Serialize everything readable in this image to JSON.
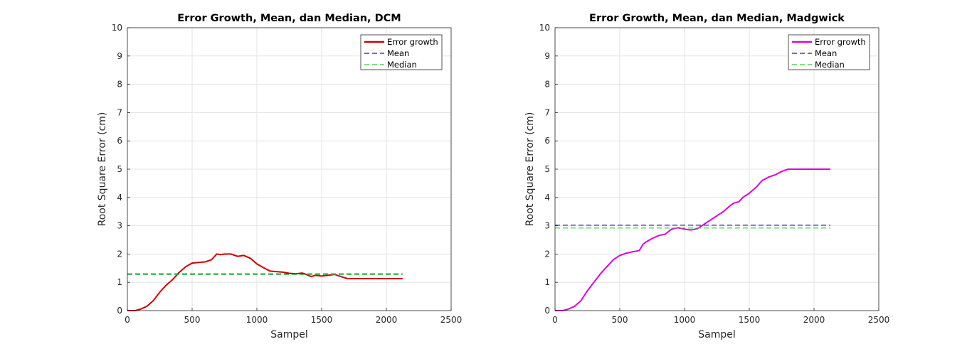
{
  "chart_data": [
    {
      "type": "line",
      "title": "Error Growth, Mean, dan Median, DCM",
      "xlabel": "Sampel",
      "ylabel": "Root Square Error (cm)",
      "xlim": [
        0,
        2500
      ],
      "ylim": [
        0,
        10
      ],
      "xticks": [
        0,
        500,
        1000,
        1500,
        2000,
        2500
      ],
      "yticks": [
        0,
        1,
        2,
        3,
        4,
        5,
        6,
        7,
        8,
        9,
        10
      ],
      "grid": true,
      "legend_position": "top-right",
      "series": [
        {
          "name": "Error growth",
          "color": "#d00000",
          "style": "solid",
          "x": [
            0,
            60,
            100,
            150,
            200,
            250,
            300,
            350,
            400,
            450,
            500,
            550,
            600,
            650,
            690,
            720,
            750,
            800,
            850,
            900,
            950,
            1000,
            1050,
            1100,
            1150,
            1200,
            1250,
            1300,
            1350,
            1380,
            1420,
            1450,
            1500,
            1550,
            1600,
            1650,
            1700,
            1800,
            1900,
            2000,
            2100,
            2125
          ],
          "y": [
            0,
            0,
            0.05,
            0.15,
            0.35,
            0.65,
            0.9,
            1.1,
            1.35,
            1.55,
            1.68,
            1.7,
            1.72,
            1.8,
            2.0,
            1.98,
            2.0,
            2.0,
            1.92,
            1.95,
            1.85,
            1.65,
            1.52,
            1.4,
            1.38,
            1.36,
            1.32,
            1.3,
            1.33,
            1.28,
            1.2,
            1.25,
            1.22,
            1.25,
            1.28,
            1.2,
            1.13,
            1.13,
            1.13,
            1.13,
            1.13,
            1.13
          ]
        },
        {
          "name": "Mean",
          "color": "#1a1a8c",
          "style": "dashed",
          "x": [
            0,
            2125
          ],
          "y": [
            1.3,
            1.3
          ]
        },
        {
          "name": "Median",
          "color": "#33cc33",
          "style": "dashed",
          "x": [
            0,
            2125
          ],
          "y": [
            1.28,
            1.28
          ]
        }
      ]
    },
    {
      "type": "line",
      "title": "Error Growth, Mean, dan Median, Madgwick",
      "xlabel": "Sampel",
      "ylabel": "Root Square Error (cm)",
      "xlim": [
        0,
        2500
      ],
      "ylim": [
        0,
        10
      ],
      "xticks": [
        0,
        500,
        1000,
        1500,
        2000,
        2500
      ],
      "yticks": [
        0,
        1,
        2,
        3,
        4,
        5,
        6,
        7,
        8,
        9,
        10
      ],
      "grid": true,
      "legend_position": "top-right",
      "series": [
        {
          "name": "Error growth",
          "color": "#e000e0",
          "style": "solid",
          "x": [
            0,
            60,
            100,
            150,
            200,
            250,
            300,
            350,
            400,
            450,
            500,
            550,
            600,
            650,
            680,
            700,
            750,
            800,
            850,
            900,
            950,
            1000,
            1050,
            1100,
            1150,
            1200,
            1250,
            1300,
            1350,
            1380,
            1420,
            1450,
            1500,
            1550,
            1600,
            1650,
            1700,
            1750,
            1800,
            1900,
            2000,
            2100,
            2125
          ],
          "y": [
            0,
            0,
            0.05,
            0.15,
            0.35,
            0.7,
            1.0,
            1.3,
            1.55,
            1.8,
            1.95,
            2.03,
            2.08,
            2.12,
            2.35,
            2.42,
            2.55,
            2.65,
            2.7,
            2.88,
            2.93,
            2.88,
            2.85,
            2.9,
            3.05,
            3.2,
            3.35,
            3.5,
            3.7,
            3.8,
            3.85,
            4.0,
            4.15,
            4.35,
            4.6,
            4.72,
            4.8,
            4.92,
            5.0,
            5.0,
            5.0,
            5.0,
            5.0
          ]
        },
        {
          "name": "Mean",
          "color": "#1a1a8c",
          "style": "dashed",
          "x": [
            0,
            2125
          ],
          "y": [
            3.02,
            3.02
          ]
        },
        {
          "name": "Median",
          "color": "#33cc33",
          "style": "dashed",
          "x": [
            0,
            2125
          ],
          "y": [
            2.92,
            2.92
          ]
        }
      ]
    }
  ]
}
